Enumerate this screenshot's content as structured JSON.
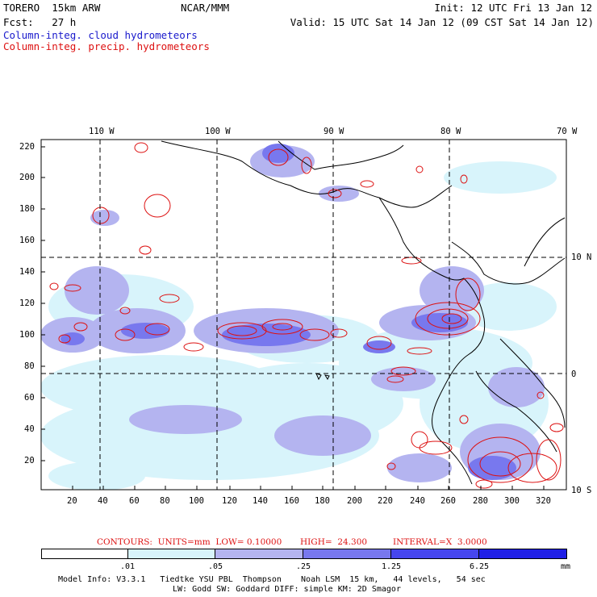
{
  "header": {
    "model": "TORERO  15km ARW",
    "org": "NCAR/MMM",
    "init": "Init: 12 UTC Fri 13 Jan 12",
    "fcst": "Fcst:   27 h",
    "valid": "Valid: 15 UTC Sat 14 Jan 12 (09 CST Sat 14 Jan 12)",
    "field1": "Column-integ. cloud hydrometeors",
    "field2": "Column-integ. precip. hydrometeors",
    "field1_color": "#1a1acc",
    "field2_color": "#dd1111"
  },
  "axes": {
    "lon_labels": [
      "110 W",
      "100 W",
      "90 W",
      "80 W",
      "70 W"
    ],
    "lat_labels": [
      "10 N",
      "0",
      "10 S"
    ],
    "y_ticks": [
      "220",
      "200",
      "180",
      "160",
      "140",
      "120",
      "100",
      "80",
      "60",
      "40",
      "20"
    ],
    "x_ticks": [
      "20",
      "40",
      "60",
      "80",
      "100",
      "120",
      "140",
      "160",
      "180",
      "200",
      "220",
      "240",
      "260",
      "280",
      "300",
      "320"
    ]
  },
  "contours_info": {
    "label": "CONTOURS:  UNITS=mm  LOW= 0.10000",
    "high": "HIGH=  24.300",
    "interval": "INTERVAL=X  3.0000"
  },
  "colorbar": {
    "labels": [
      ".01",
      ".05",
      ".25",
      "1.25",
      "6.25",
      "mm"
    ],
    "colors": [
      "#ffffff",
      "#d8f4fb",
      "#b4b4f0",
      "#7878ee",
      "#4646ee",
      "#2020e6"
    ]
  },
  "footer": {
    "line1": "Model Info: V3.3.1   Tiedtke YSU PBL  Thompson    Noah LSM  15 km,   44 levels,   54 sec",
    "line2": "LW: Godd SW: Goddard DIFF: simple KM: 2D Smagor"
  },
  "map_icons": [
    "coastline-icon",
    "precip-contour-icon",
    "cloud-shading-icon"
  ]
}
